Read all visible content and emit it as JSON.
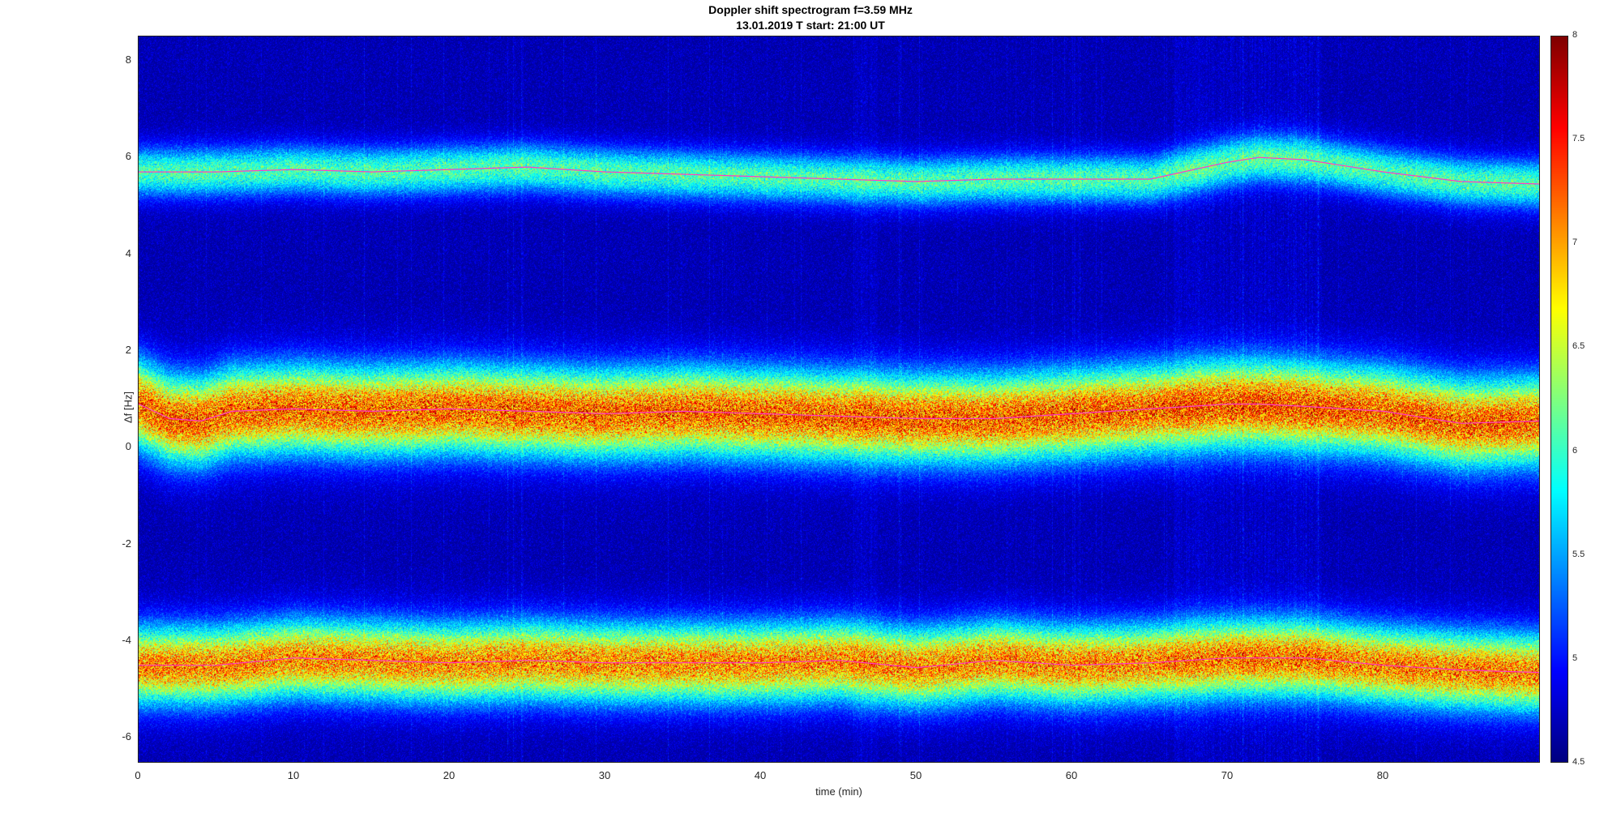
{
  "chart_data": {
    "type": "heatmap",
    "title": "Doppler shift spectrogram f=3.59 MHz",
    "subtitle": "13.01.2019    T start: 21:00 UT",
    "xlabel": "time (min)",
    "ylabel": "Δf [Hz]",
    "xlim": [
      0,
      90
    ],
    "ylim": [
      -6.5,
      8.5
    ],
    "xticks": [
      "0",
      "10",
      "20",
      "30",
      "40",
      "50",
      "60",
      "70",
      "80"
    ],
    "yticks": [
      "8",
      "6",
      "4",
      "2",
      "0",
      "-2",
      "-4",
      "-6"
    ],
    "colorbar": {
      "range": [
        4.5,
        8
      ],
      "ticks": [
        "8",
        "7.5",
        "7",
        "6.5",
        "6",
        "5.5",
        "5",
        "4.5"
      ],
      "colormap": "jet"
    },
    "colors": {
      "trace_line": "#ff3cc8",
      "background_low": "#00008f"
    },
    "traces": [
      {
        "x": [
          0,
          5,
          10,
          15,
          20,
          25,
          30,
          35,
          40,
          45,
          50,
          55,
          60,
          65,
          70,
          72,
          75,
          80,
          85,
          90
        ],
        "y": [
          5.7,
          5.7,
          5.75,
          5.7,
          5.75,
          5.8,
          5.7,
          5.65,
          5.6,
          5.55,
          5.5,
          5.55,
          5.55,
          5.55,
          5.9,
          6.0,
          5.95,
          5.7,
          5.5,
          5.45
        ]
      },
      {
        "x": [
          0,
          2,
          4,
          6,
          10,
          15,
          20,
          25,
          30,
          35,
          40,
          45,
          50,
          55,
          60,
          65,
          70,
          72,
          75,
          80,
          85,
          90
        ],
        "y": [
          0.9,
          0.6,
          0.55,
          0.75,
          0.8,
          0.75,
          0.8,
          0.75,
          0.7,
          0.75,
          0.7,
          0.65,
          0.6,
          0.6,
          0.7,
          0.8,
          0.9,
          0.9,
          0.85,
          0.75,
          0.5,
          0.55
        ]
      },
      {
        "x": [
          0,
          5,
          10,
          15,
          20,
          25,
          30,
          35,
          40,
          45,
          50,
          55,
          60,
          65,
          70,
          75,
          80,
          85,
          90
        ],
        "y": [
          -4.5,
          -4.5,
          -4.35,
          -4.4,
          -4.45,
          -4.4,
          -4.45,
          -4.45,
          -4.45,
          -4.4,
          -4.55,
          -4.4,
          -4.5,
          -4.45,
          -4.35,
          -4.35,
          -4.5,
          -4.6,
          -4.65
        ]
      }
    ],
    "bands": [
      {
        "center_series": 0,
        "width_hz": 0.5,
        "peak": 6.4
      },
      {
        "center_series": 1,
        "width_hz": 0.9,
        "peak": 7.9
      },
      {
        "center_series": 2,
        "width_hz": 0.8,
        "peak": 7.7
      }
    ]
  }
}
